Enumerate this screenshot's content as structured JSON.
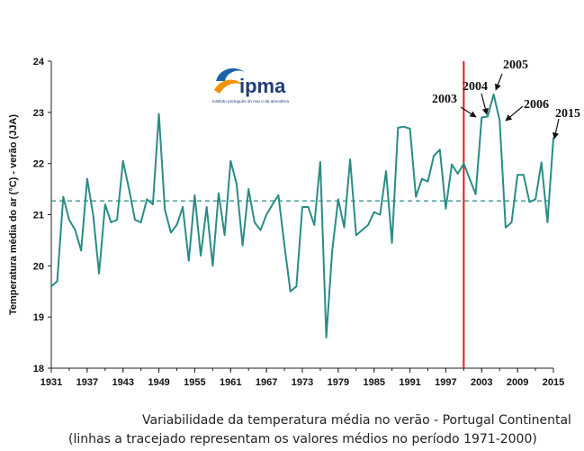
{
  "chart_data": {
    "type": "line",
    "ylabel": "Temperatura média do ar (°C) - verão (JJA)",
    "ylim": [
      18,
      24
    ],
    "xlim": [
      1931,
      2015
    ],
    "yticks": [
      18,
      19,
      20,
      21,
      22,
      23,
      24
    ],
    "xticks": [
      1931,
      1937,
      1943,
      1949,
      1955,
      1961,
      1967,
      1973,
      1979,
      1985,
      1991,
      1997,
      2003,
      2009,
      2015
    ],
    "mean_1971_2000": 21.27,
    "vline_year": 2000,
    "series": [
      {
        "name": "Temperatura média de verão",
        "color": "#2a8c86",
        "x": [
          1931,
          1932,
          1933,
          1934,
          1935,
          1936,
          1937,
          1938,
          1939,
          1940,
          1941,
          1942,
          1943,
          1944,
          1945,
          1946,
          1947,
          1948,
          1949,
          1950,
          1951,
          1952,
          1953,
          1954,
          1955,
          1956,
          1957,
          1958,
          1959,
          1960,
          1961,
          1962,
          1963,
          1964,
          1965,
          1966,
          1967,
          1968,
          1969,
          1970,
          1971,
          1972,
          1973,
          1974,
          1975,
          1976,
          1977,
          1978,
          1979,
          1980,
          1981,
          1982,
          1983,
          1984,
          1985,
          1986,
          1987,
          1988,
          1989,
          1990,
          1991,
          1992,
          1993,
          1994,
          1995,
          1996,
          1997,
          1998,
          1999,
          2000,
          2001,
          2002,
          2003,
          2004,
          2005,
          2006,
          2007,
          2008,
          2009,
          2010,
          2011,
          2012,
          2013,
          2014,
          2015
        ],
        "values": [
          19.6,
          19.7,
          21.35,
          20.9,
          20.7,
          20.3,
          21.7,
          21.0,
          19.85,
          21.2,
          20.85,
          20.9,
          22.05,
          21.5,
          20.9,
          20.85,
          21.3,
          21.2,
          22.97,
          21.1,
          20.65,
          20.8,
          21.15,
          20.1,
          21.38,
          20.2,
          21.15,
          20.0,
          21.42,
          20.6,
          22.05,
          21.6,
          20.4,
          21.5,
          20.85,
          20.7,
          21.0,
          21.2,
          21.38,
          20.4,
          19.5,
          19.6,
          21.15,
          21.15,
          20.8,
          22.03,
          18.6,
          20.3,
          21.3,
          20.75,
          22.08,
          20.6,
          20.7,
          20.8,
          21.05,
          21.0,
          21.85,
          20.45,
          22.7,
          22.72,
          22.68,
          21.35,
          21.7,
          21.65,
          22.15,
          22.27,
          21.12,
          21.98,
          21.8,
          22.0,
          21.7,
          21.4,
          22.9,
          22.92,
          23.35,
          22.85,
          20.75,
          20.85,
          21.78,
          21.78,
          21.25,
          21.3,
          22.02,
          20.85,
          22.5
        ]
      }
    ],
    "annotations": [
      {
        "label": "2003",
        "year": 2003,
        "value": 22.9
      },
      {
        "label": "2004",
        "year": 2004,
        "value": 22.92
      },
      {
        "label": "2005",
        "year": 2005,
        "value": 23.35
      },
      {
        "label": "2006",
        "year": 2006,
        "value": 22.85
      },
      {
        "label": "2015",
        "year": 2015,
        "value": 22.5
      }
    ],
    "caption_line1": "Variabilidade da temperatura média no verão - Portugal Continental",
    "caption_line2": "(linhas a tracejado representam os valores médios no período 1971-2000)"
  },
  "logo": {
    "name": "ipma",
    "subtitle": "instituto português do mar e da atmosfera",
    "colors": {
      "orange": "#f39200",
      "blue": "#1b63a8",
      "navy": "#1f3d7a"
    }
  }
}
